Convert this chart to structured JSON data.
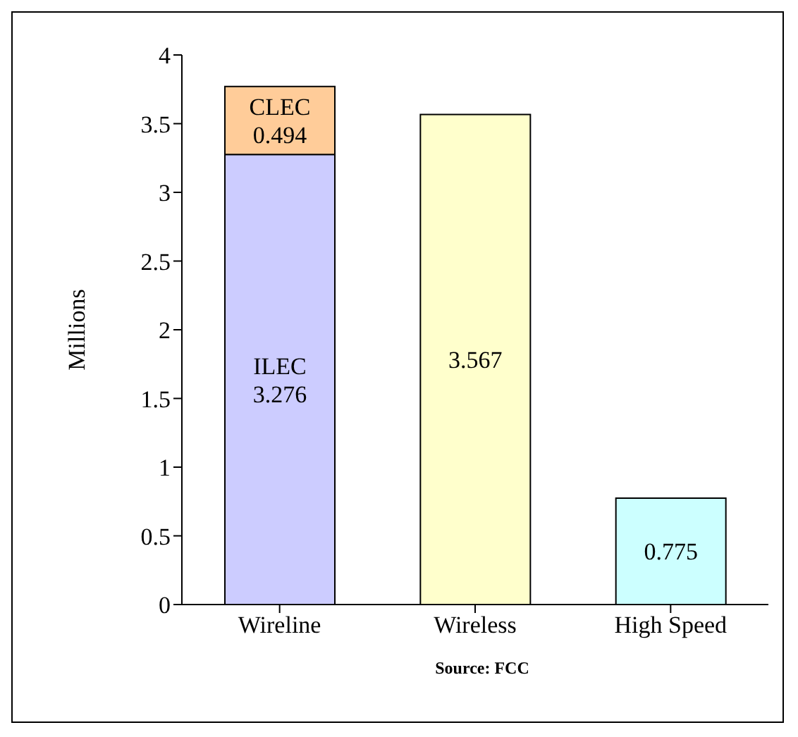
{
  "chart_data": {
    "type": "bar",
    "stacked": true,
    "ylabel": "Millions",
    "categories": [
      "Wireline",
      "Wireless",
      "High Speed"
    ],
    "series": [
      {
        "name": "ILEC",
        "color": "#ccccff",
        "values": [
          3.276,
          null,
          null
        ]
      },
      {
        "name": "CLEC",
        "color": "#ffcc99",
        "values": [
          0.494,
          null,
          null
        ]
      },
      {
        "colors": [
          "#ccccff",
          "#ffffcc",
          "#ccffff"
        ],
        "values": [
          null,
          3.567,
          0.775
        ]
      }
    ],
    "ylim": [
      0,
      4
    ],
    "yticks": [
      0,
      0.5,
      1,
      1.5,
      2,
      2.5,
      3,
      3.5,
      4
    ],
    "data_labels": true,
    "annotations": [
      "Source: FCC"
    ]
  }
}
